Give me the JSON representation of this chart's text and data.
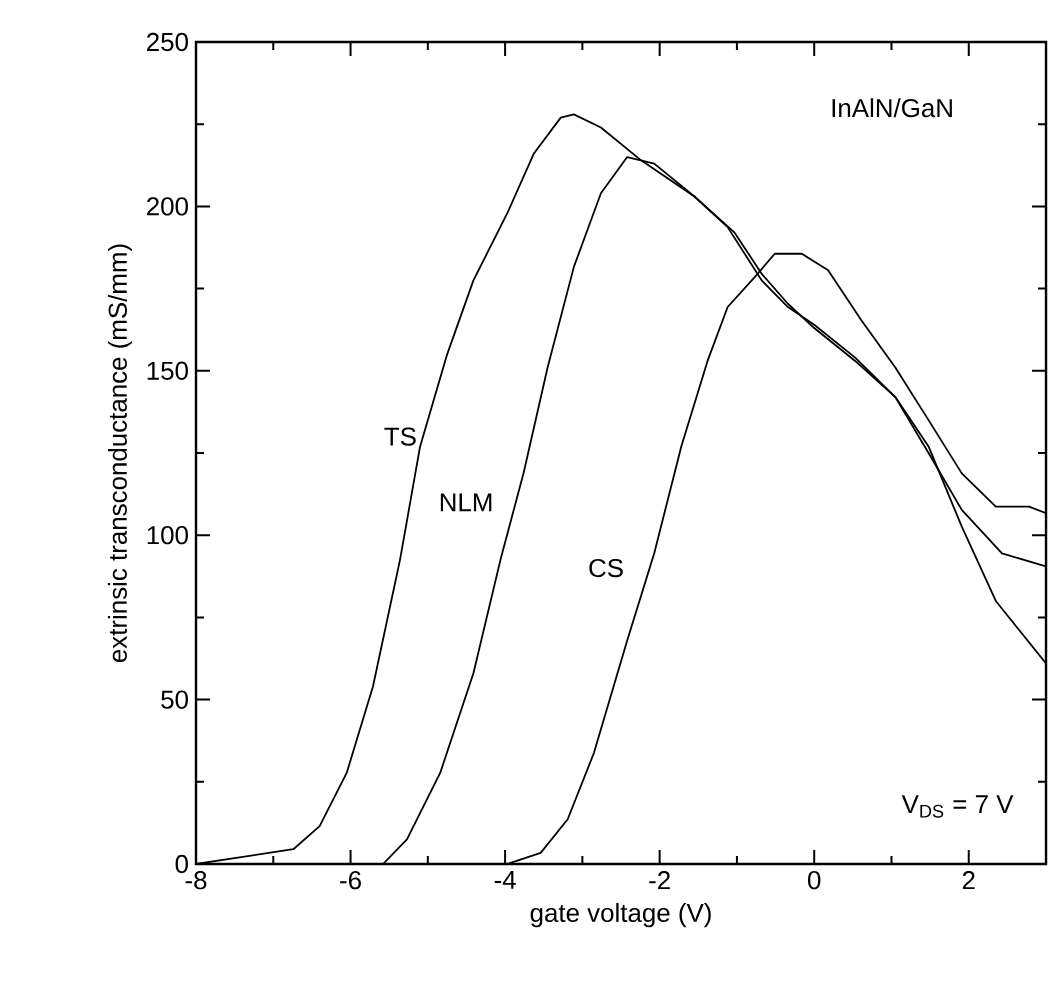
{
  "chart_data": {
    "type": "line",
    "xlabel": "gate voltage (V)",
    "ylabel": "extrinsic transconductance (mS/mm)",
    "xlim": [
      -8,
      3
    ],
    "ylim": [
      0,
      250
    ],
    "xticks": [
      -8,
      -6,
      -4,
      -2,
      0,
      2
    ],
    "yticks": [
      0,
      50,
      100,
      150,
      200,
      250
    ],
    "grid": false,
    "legend": false,
    "marker": "none",
    "line_style": "solid",
    "annotations": [
      "InAlN/GaN",
      "V$_{DS}$ = 7 V"
    ],
    "series": [
      {
        "name": "TS",
        "color": "#000000",
        "x": [
          -8,
          -6.74,
          -6.4,
          -6.05,
          -5.71,
          -5.36,
          -5.1,
          -4.75,
          -4.41,
          -3.97,
          -3.63,
          -3.28,
          -3.11,
          -2.76,
          -2.24,
          -1.55,
          -1.03,
          -0.68,
          -0.34,
          0,
          0.53,
          1.05,
          1.48,
          1.91,
          2.35,
          3
        ],
        "values": [
          0,
          4.5,
          11.5,
          27.7,
          54,
          92.5,
          127,
          155,
          177.5,
          198,
          216,
          227,
          228,
          224,
          214,
          203,
          192,
          179.5,
          170.4,
          163,
          153,
          142,
          127,
          102.6,
          80,
          61
        ]
      },
      {
        "name": "NLM",
        "color": "#000000",
        "x": [
          -5.58,
          -5.27,
          -4.84,
          -4.41,
          -4.06,
          -3.76,
          -3.45,
          -3.11,
          -2.76,
          -2.42,
          -2.07,
          -1.55,
          -1.12,
          -0.68,
          -0.34,
          0,
          0.53,
          1.05,
          1.48,
          1.91,
          2.43,
          3
        ],
        "values": [
          0,
          7.5,
          27.7,
          58,
          92.5,
          119,
          151,
          181.6,
          204,
          215,
          213,
          203,
          193.7,
          177.5,
          169.4,
          164,
          154,
          142,
          125,
          107.7,
          94.5,
          90.5
        ]
      },
      {
        "name": "CS",
        "color": "#000000",
        "x": [
          -3.97,
          -3.54,
          -3.19,
          -2.85,
          -2.42,
          -2.07,
          -1.72,
          -1.38,
          -1.12,
          -0.77,
          -0.51,
          -0.16,
          0.18,
          0.61,
          1.05,
          1.48,
          1.91,
          2.35,
          2.78,
          3
        ],
        "values": [
          0,
          3.4,
          13.6,
          33.8,
          68,
          94.5,
          127,
          153,
          169.4,
          178.5,
          185.6,
          185.6,
          180.6,
          165.4,
          151,
          135,
          118.8,
          108.7,
          108.7,
          106.7
        ]
      }
    ]
  }
}
